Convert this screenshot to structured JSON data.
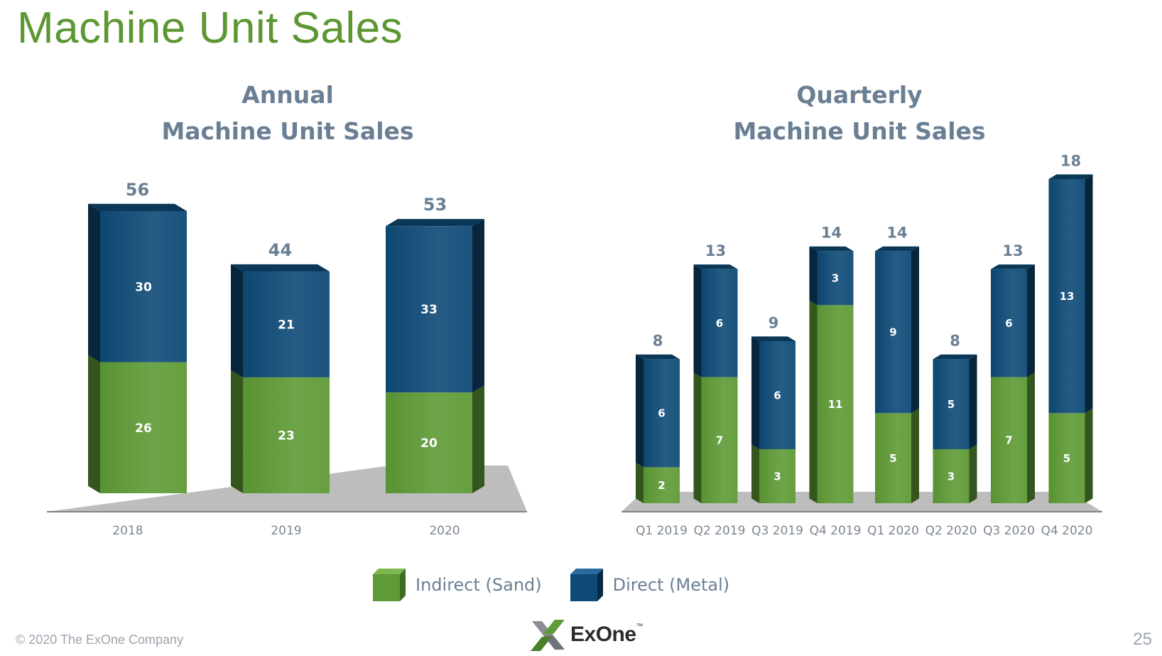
{
  "slide": {
    "title": "Machine Unit Sales",
    "copyright": "© 2020 The ExOne Company",
    "logo_text": "ExOne",
    "logo_tm": "™",
    "page_number": "25"
  },
  "colors": {
    "indirect": "#5e9a35",
    "direct": "#0e4a76",
    "floor": "#bdbdbd",
    "label_dark": "#6a7f94",
    "tick": "#7d8691"
  },
  "legend": [
    {
      "name": "Indirect (Sand)",
      "color": "#5e9a35"
    },
    {
      "name": "Direct (Metal)",
      "color": "#0e4a76"
    }
  ],
  "chart_data": [
    {
      "type": "bar",
      "stacked": true,
      "title_lines": [
        "Annual",
        "Machine Unit Sales"
      ],
      "categories": [
        "2018",
        "2019",
        "2020"
      ],
      "series": [
        {
          "name": "Indirect (Sand)",
          "values": [
            26,
            23,
            20
          ]
        },
        {
          "name": "Direct (Metal)",
          "values": [
            30,
            21,
            33
          ]
        }
      ],
      "totals": [
        56,
        44,
        53
      ],
      "ylim": [
        0,
        56
      ]
    },
    {
      "type": "bar",
      "stacked": true,
      "title_lines": [
        "Quarterly",
        "Machine Unit Sales"
      ],
      "categories": [
        "Q1 2019",
        "Q2 2019",
        "Q3 2019",
        "Q4 2019",
        "Q1 2020",
        "Q2 2020",
        "Q3 2020",
        "Q4 2020"
      ],
      "series": [
        {
          "name": "Indirect (Sand)",
          "values": [
            2,
            7,
            3,
            11,
            5,
            3,
            7,
            5
          ]
        },
        {
          "name": "Direct (Metal)",
          "values": [
            6,
            6,
            6,
            3,
            9,
            5,
            6,
            13
          ]
        }
      ],
      "totals": [
        8,
        13,
        9,
        14,
        14,
        8,
        13,
        18
      ],
      "ylim": [
        0,
        18
      ]
    }
  ]
}
